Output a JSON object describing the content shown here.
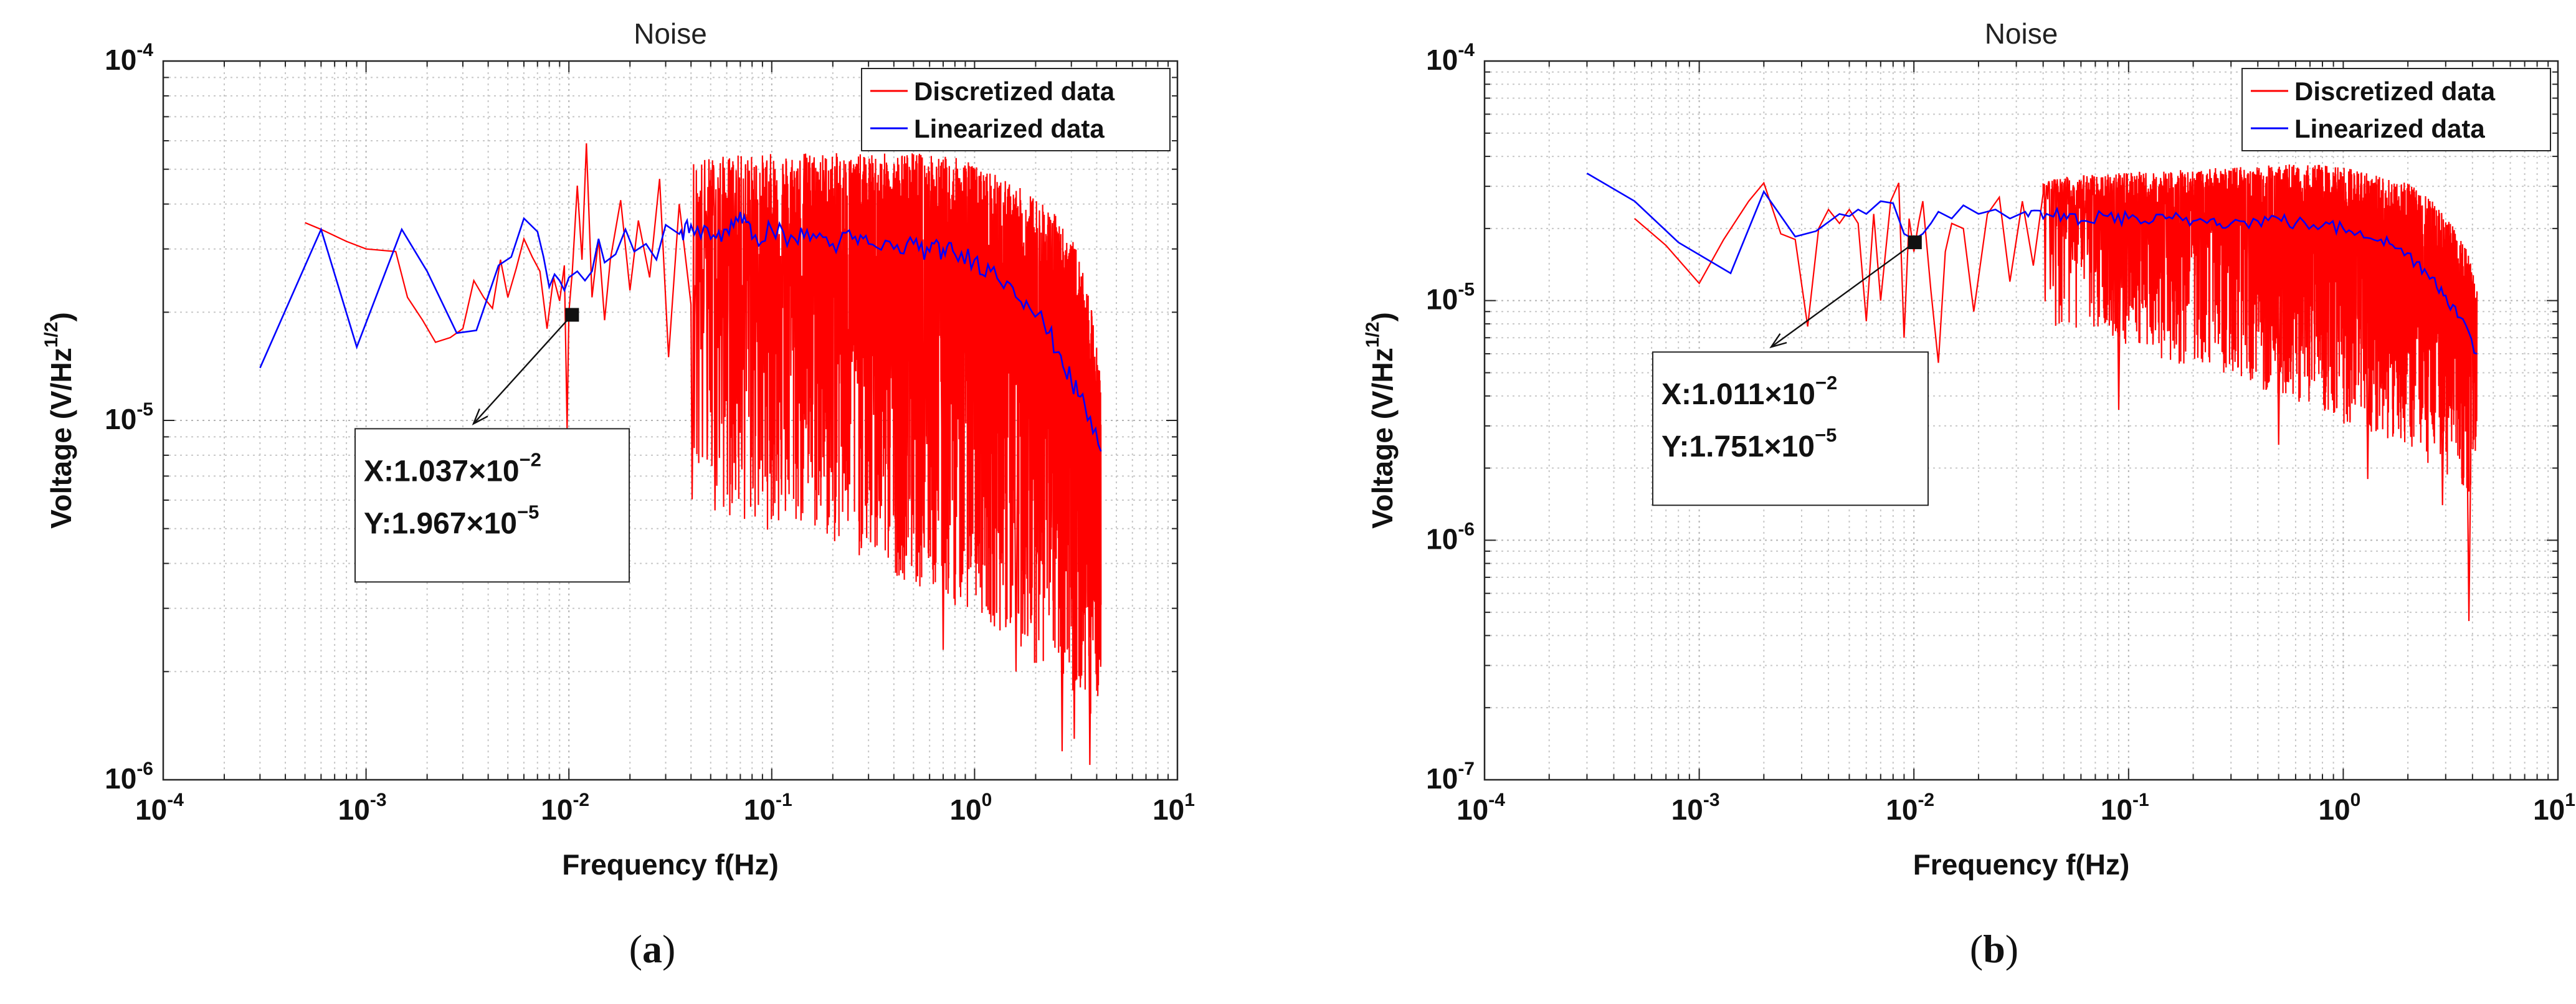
{
  "chart_data": [
    {
      "type": "line",
      "panel": "(a)",
      "panel_letter": "a",
      "title": "Noise",
      "xlabel": "Frequency f(Hz)",
      "ylabel_base": "Voltage (V/Hz",
      "ylabel_exp": "1/2",
      "ylabel_tail": ")",
      "xscale": "log",
      "yscale": "log",
      "xlim": [
        0.0001,
        10
      ],
      "ylim": [
        1e-06,
        0.0001
      ],
      "x_ticks": [
        {
          "base": "10",
          "exp": "-4"
        },
        {
          "base": "10",
          "exp": "-3"
        },
        {
          "base": "10",
          "exp": "-2"
        },
        {
          "base": "10",
          "exp": "-1"
        },
        {
          "base": "10",
          "exp": "0"
        },
        {
          "base": "10",
          "exp": "1"
        }
      ],
      "y_ticks": [
        {
          "base": "10",
          "exp": "-6"
        },
        {
          "base": "10",
          "exp": "-5"
        },
        {
          "base": "10",
          "exp": "-4"
        }
      ],
      "grid": true,
      "legend_position": "top-right",
      "series": [
        {
          "name": "Discretized data",
          "color": "#ff0000",
          "x": [
            0.0005,
            0.0006,
            0.0008,
            0.001,
            0.0014,
            0.0016,
            0.0019,
            0.0022,
            0.0026,
            0.003,
            0.0034,
            0.0038,
            0.0042,
            0.0046,
            0.005,
            0.0055,
            0.006,
            0.0066,
            0.0072,
            0.0078,
            0.0084,
            0.009,
            0.0095,
            0.0098,
            0.01,
            0.0104,
            0.011,
            0.0116,
            0.0122,
            0.013,
            0.014,
            0.015,
            0.016,
            0.018,
            0.02,
            0.022,
            0.025,
            0.028,
            0.031,
            0.035,
            0.04
          ],
          "y": [
            3.55e-05,
            3.4e-05,
            3.15e-05,
            3e-05,
            2.95e-05,
            2.2e-05,
            1.9e-05,
            1.65e-05,
            1.7e-05,
            1.8e-05,
            2.45e-05,
            2.2e-05,
            2.05e-05,
            2.8e-05,
            2.2e-05,
            2.65e-05,
            3.2e-05,
            2.85e-05,
            2.6e-05,
            1.8e-05,
            2.5e-05,
            2.15e-05,
            2.7e-05,
            9.5e-06,
            2e-05,
            2.6e-05,
            4.5e-05,
            2.8e-05,
            5.9e-05,
            2.2e-05,
            3.2e-05,
            1.9e-05,
            2.8e-05,
            4.1e-05,
            2.3e-05,
            3.6e-05,
            2.5e-05,
            4.7e-05,
            1.5e-05,
            4e-05,
            2.1e-05
          ],
          "envelope_x": [
            0.04,
            0.08,
            0.15,
            0.3,
            0.5,
            0.8,
            1.0,
            1.4,
            2.0,
            2.6,
            3.2,
            3.8,
            4.2
          ],
          "envelope_upper": [
            5.4e-05,
            5.5e-05,
            5.6e-05,
            5.5e-05,
            5.6e-05,
            5.4e-05,
            5.2e-05,
            4.7e-05,
            4.2e-05,
            3.7e-05,
            3e-05,
            2e-05,
            1.3e-05
          ],
          "envelope_lower": [
            6e-06,
            5e-06,
            4.8e-06,
            4e-06,
            3.5e-06,
            3e-06,
            3e-06,
            2.5e-06,
            2.1e-06,
            2e-06,
            1.7e-06,
            1.5e-06,
            1.8e-06
          ],
          "min_spikes": [
            {
              "x": 0.7,
              "y": 2.3e-06
            },
            {
              "x": 1.6,
              "y": 2e-06
            },
            {
              "x": 2.7,
              "y": 1.2e-06
            },
            {
              "x": 3.1,
              "y": 1.3e-06
            },
            {
              "x": 3.7,
              "y": 1.1e-06
            }
          ]
        },
        {
          "name": "Linearized data",
          "color": "#0000ff",
          "x": [
            0.0003,
            0.0006,
            0.0009,
            0.0015,
            0.002,
            0.0028,
            0.0035,
            0.0045,
            0.0052,
            0.006,
            0.007,
            0.0075,
            0.008,
            0.0085,
            0.009,
            0.0095,
            0.01,
            0.011,
            0.012,
            0.013,
            0.014,
            0.015,
            0.017,
            0.019,
            0.021,
            0.024,
            0.027,
            0.03,
            0.035,
            0.04,
            0.05,
            0.06,
            0.07,
            0.08,
            0.1,
            0.13,
            0.16,
            0.2,
            0.25,
            0.3,
            0.4,
            0.5,
            0.6,
            0.7,
            0.8,
            1.0,
            1.2,
            1.5,
            1.8,
            2.2,
            2.6,
            3.0,
            3.5,
            4.2
          ],
          "y": [
            1.4e-05,
            3.4e-05,
            1.6e-05,
            3.4e-05,
            2.6e-05,
            1.75e-05,
            1.78e-05,
            2.7e-05,
            2.85e-05,
            3.65e-05,
            3.35e-05,
            2.85e-05,
            2.35e-05,
            2.55e-05,
            2.45e-05,
            2.3e-05,
            2.5e-05,
            2.6e-05,
            2.45e-05,
            2.6e-05,
            3.2e-05,
            2.75e-05,
            2.9e-05,
            3.4e-05,
            2.95e-05,
            3.1e-05,
            2.8e-05,
            3.5e-05,
            3.3e-05,
            3.5e-05,
            3.2e-05,
            3.4e-05,
            3.8e-05,
            3.2e-05,
            3.4e-05,
            3.2e-05,
            3.3e-05,
            3.1e-05,
            3.2e-05,
            3.1e-05,
            3e-05,
            3.1e-05,
            2.95e-05,
            3e-05,
            2.9e-05,
            2.8e-05,
            2.6e-05,
            2.4e-05,
            2.15e-05,
            1.85e-05,
            1.55e-05,
            1.28e-05,
            1.1e-05,
            8.2e-06
          ]
        }
      ],
      "datatip": {
        "x_value": 0.01037,
        "y_value": 1.967e-05,
        "x_label": "X:1.037×10",
        "x_exp": "−2",
        "y_label": "Y:1.967×10",
        "y_exp": "−5"
      }
    },
    {
      "type": "line",
      "panel": "(b)",
      "panel_letter": "b",
      "title": "Noise",
      "xlabel": "Frequency f(Hz)",
      "ylabel_base": "Voltage (V/Hz",
      "ylabel_exp": "1/2",
      "ylabel_tail": ")",
      "xscale": "log",
      "yscale": "log",
      "xlim": [
        0.0001,
        10
      ],
      "ylim": [
        1e-07,
        0.0001
      ],
      "x_ticks": [
        {
          "base": "10",
          "exp": "-4"
        },
        {
          "base": "10",
          "exp": "-3"
        },
        {
          "base": "10",
          "exp": "-2"
        },
        {
          "base": "10",
          "exp": "-1"
        },
        {
          "base": "10",
          "exp": "0"
        },
        {
          "base": "10",
          "exp": "1"
        }
      ],
      "y_ticks": [
        {
          "base": "10",
          "exp": "-7"
        },
        {
          "base": "10",
          "exp": "-6"
        },
        {
          "base": "10",
          "exp": "-5"
        },
        {
          "base": "10",
          "exp": "-4"
        }
      ],
      "grid": true,
      "legend_position": "top-right",
      "series": [
        {
          "name": "Discretized data",
          "color": "#ff0000",
          "x": [
            0.0005,
            0.0007,
            0.001,
            0.0013,
            0.0017,
            0.002,
            0.0024,
            0.0028,
            0.0032,
            0.0036,
            0.004,
            0.0045,
            0.005,
            0.0055,
            0.006,
            0.0065,
            0.007,
            0.0078,
            0.0085,
            0.009,
            0.0095,
            0.01,
            0.0105,
            0.011,
            0.012,
            0.013,
            0.014,
            0.015,
            0.017,
            0.019,
            0.022,
            0.025,
            0.028,
            0.032,
            0.036,
            0.04
          ],
          "y": [
            2.2e-05,
            1.7e-05,
            1.18e-05,
            1.8e-05,
            2.6e-05,
            3.1e-05,
            1.9e-05,
            1.8e-05,
            7.8e-06,
            2e-05,
            2.4e-05,
            2.1e-05,
            2.4e-05,
            2.1e-05,
            8.2e-06,
            2.3e-05,
            1e-05,
            2.6e-05,
            3.1e-05,
            7e-06,
            2.2e-05,
            1.6e-05,
            2.1e-05,
            2.6e-05,
            1.1e-05,
            5.5e-06,
            1.6e-05,
            2.1e-05,
            2e-05,
            9e-06,
            2.3e-05,
            2.7e-05,
            1.2e-05,
            2.6e-05,
            1.4e-05,
            2.8e-05
          ],
          "envelope_x": [
            0.04,
            0.08,
            0.15,
            0.3,
            0.5,
            0.8,
            1.0,
            1.4,
            2.0,
            2.6,
            3.2,
            3.8,
            4.2
          ],
          "envelope_upper": [
            3.2e-05,
            3.4e-05,
            3.5e-05,
            3.6e-05,
            3.7e-05,
            3.7e-05,
            3.6e-05,
            3.4e-05,
            3.1e-05,
            2.6e-05,
            2.1e-05,
            1.6e-05,
            1.1e-05
          ],
          "envelope_lower": [
            8e-06,
            7e-06,
            5.5e-06,
            4.8e-06,
            4e-06,
            3.5e-06,
            3e-06,
            2.8e-06,
            2.4e-06,
            2e-06,
            1.8e-06,
            1.5e-06,
            2.2e-06
          ],
          "min_spikes": [
            {
              "x": 0.09,
              "y": 3.5e-06
            },
            {
              "x": 0.5,
              "y": 2.5e-06
            },
            {
              "x": 1.3,
              "y": 1.8e-06
            },
            {
              "x": 2.9,
              "y": 1.4e-06
            },
            {
              "x": 3.85,
              "y": 4.6e-07
            }
          ]
        },
        {
          "name": "Linearized data",
          "color": "#0000ff",
          "x": [
            0.0003,
            0.0005,
            0.0008,
            0.0014,
            0.002,
            0.0028,
            0.0035,
            0.0045,
            0.005,
            0.0055,
            0.006,
            0.007,
            0.008,
            0.009,
            0.01,
            0.011,
            0.012,
            0.013,
            0.015,
            0.017,
            0.02,
            0.024,
            0.028,
            0.033,
            0.04,
            0.05,
            0.06,
            0.08,
            0.1,
            0.13,
            0.16,
            0.2,
            0.25,
            0.3,
            0.4,
            0.5,
            0.6,
            0.8,
            1.0,
            1.2,
            1.5,
            1.8,
            2.2,
            2.6,
            3.0,
            3.5,
            4.2
          ],
          "y": [
            3.4e-05,
            2.6e-05,
            1.75e-05,
            1.3e-05,
            2.85e-05,
            1.85e-05,
            1.95e-05,
            2.3e-05,
            2.25e-05,
            2.4e-05,
            2.3e-05,
            2.6e-05,
            2.55e-05,
            1.9e-05,
            1.8e-05,
            1.9e-05,
            2.1e-05,
            2.35e-05,
            2.2e-05,
            2.5e-05,
            2.3e-05,
            2.4e-05,
            2.2e-05,
            2.35e-05,
            2.2e-05,
            2.3e-05,
            2.15e-05,
            2.25e-05,
            2.2e-05,
            2.15e-05,
            2.2e-05,
            2.15e-05,
            2.2e-05,
            2.1e-05,
            2.15e-05,
            2.2e-05,
            2.1e-05,
            2.05e-05,
            2e-05,
            1.95e-05,
            1.8e-05,
            1.65e-05,
            1.45e-05,
            1.25e-05,
            1.05e-05,
            8.5e-06,
            6e-06
          ]
        }
      ],
      "datatip": {
        "x_value": 0.01011,
        "y_value": 1.751e-05,
        "x_label": "X:1.011×10",
        "x_exp": "−2",
        "y_label": "Y:1.751×10",
        "y_exp": "−5"
      }
    }
  ]
}
